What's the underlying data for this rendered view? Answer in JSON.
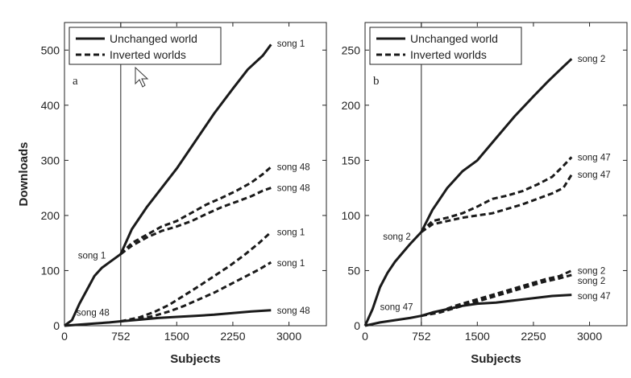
{
  "chart_data": [
    {
      "type": "line",
      "panel_label": "a",
      "xlabel": "Subjects",
      "ylabel": "Downloads",
      "xlim": [
        0,
        3500
      ],
      "ylim": [
        0,
        550
      ],
      "xticks": [
        0,
        752,
        1500,
        2250,
        3000
      ],
      "yticks": [
        0,
        100,
        200,
        300,
        400,
        500
      ],
      "xtick_labels": [
        "0",
        "752",
        "1500",
        "2250",
        "3000"
      ],
      "ytick_labels": [
        "0",
        "100",
        "200",
        "300",
        "400",
        "500"
      ],
      "reference_line_x": 752,
      "legend": {
        "position": "top-left",
        "entries": [
          {
            "label": "Unchanged world",
            "style": "solid"
          },
          {
            "label": "Inverted worlds",
            "style": "dashed"
          }
        ]
      },
      "series": [
        {
          "name": "Unchanged world",
          "label": "song 1",
          "style": "solid",
          "x": [
            0,
            100,
            200,
            300,
            400,
            500,
            600,
            752,
            900,
            1100,
            1300,
            1500,
            1750,
            2000,
            2250,
            2450,
            2650,
            2760
          ],
          "y": [
            0,
            10,
            40,
            65,
            90,
            105,
            115,
            130,
            175,
            215,
            250,
            285,
            335,
            385,
            430,
            465,
            490,
            510
          ]
        },
        {
          "name": "Unchanged world",
          "label": "song 48",
          "style": "solid",
          "x": [
            0,
            200,
            400,
            600,
            752,
            1000,
            1250,
            1500,
            1750,
            2000,
            2250,
            2500,
            2760
          ],
          "y": [
            0,
            2,
            4,
            6,
            8,
            11,
            14,
            16,
            18,
            20,
            23,
            26,
            28
          ]
        },
        {
          "name": "Inverted worlds",
          "label": "song 48",
          "style": "dashed",
          "x": [
            752,
            900,
            1100,
            1300,
            1500,
            1700,
            1900,
            2100,
            2300,
            2500,
            2650,
            2760
          ],
          "y": [
            130,
            150,
            165,
            180,
            190,
            205,
            220,
            232,
            245,
            260,
            275,
            288
          ]
        },
        {
          "name": "Inverted worlds",
          "label": "song 48",
          "style": "dashed",
          "x": [
            752,
            900,
            1100,
            1300,
            1500,
            1700,
            1900,
            2100,
            2300,
            2500,
            2650,
            2760
          ],
          "y": [
            130,
            145,
            160,
            172,
            180,
            190,
            203,
            215,
            225,
            235,
            245,
            250
          ]
        },
        {
          "name": "Inverted worlds",
          "label": "song 1",
          "style": "dashed",
          "x": [
            752,
            1000,
            1200,
            1400,
            1600,
            1800,
            2000,
            2200,
            2400,
            2600,
            2760
          ],
          "y": [
            8,
            15,
            25,
            38,
            55,
            72,
            90,
            108,
            128,
            150,
            170
          ]
        },
        {
          "name": "Inverted worlds",
          "label": "song 1",
          "style": "dashed",
          "x": [
            752,
            1000,
            1200,
            1400,
            1600,
            1800,
            2000,
            2200,
            2400,
            2600,
            2760
          ],
          "y": [
            8,
            12,
            18,
            26,
            36,
            48,
            60,
            74,
            88,
            102,
            115
          ]
        }
      ],
      "annotations": [
        {
          "text": "song 1",
          "x": 2840,
          "y": 512
        },
        {
          "text": "song 48",
          "x": 2840,
          "y": 288
        },
        {
          "text": "song 48",
          "x": 2840,
          "y": 250
        },
        {
          "text": "song 1",
          "x": 2840,
          "y": 170
        },
        {
          "text": "song 1",
          "x": 2840,
          "y": 114
        },
        {
          "text": "song 48",
          "x": 2840,
          "y": 28
        },
        {
          "text": "song 1",
          "x": 180,
          "y": 128
        },
        {
          "text": "song 48",
          "x": 160,
          "y": 24
        }
      ]
    },
    {
      "type": "line",
      "panel_label": "b",
      "xlabel": "Subjects",
      "ylabel": "",
      "xlim": [
        0,
        3500
      ],
      "ylim": [
        0,
        275
      ],
      "xticks": [
        0,
        752,
        1500,
        2250,
        3000
      ],
      "yticks": [
        0,
        50,
        100,
        150,
        200,
        250
      ],
      "xtick_labels": [
        "0",
        "752",
        "1500",
        "2250",
        "3000"
      ],
      "ytick_labels": [
        "0",
        "50",
        "100",
        "150",
        "200",
        "250"
      ],
      "reference_line_x": 752,
      "legend": {
        "position": "top-left",
        "entries": [
          {
            "label": "Unchanged world",
            "style": "solid"
          },
          {
            "label": "Inverted worlds",
            "style": "dashed"
          }
        ]
      },
      "series": [
        {
          "name": "Unchanged world",
          "label": "song 2",
          "style": "solid",
          "x": [
            0,
            100,
            200,
            300,
            400,
            500,
            600,
            752,
            900,
            1100,
            1300,
            1500,
            1750,
            2000,
            2250,
            2450,
            2650,
            2760
          ],
          "y": [
            0,
            15,
            35,
            48,
            58,
            66,
            74,
            85,
            105,
            125,
            140,
            150,
            170,
            190,
            208,
            222,
            235,
            242
          ]
        },
        {
          "name": "Unchanged world",
          "label": "song 47",
          "style": "solid",
          "x": [
            0,
            200,
            400,
            600,
            752,
            900,
            1100,
            1300,
            1500,
            1750,
            2000,
            2250,
            2500,
            2760
          ],
          "y": [
            0,
            3,
            5,
            7,
            9,
            12,
            15,
            18,
            20,
            21,
            23,
            25,
            27,
            28
          ]
        },
        {
          "name": "Inverted worlds",
          "label": "song 47",
          "style": "dashed",
          "x": [
            752,
            900,
            1100,
            1300,
            1500,
            1700,
            1900,
            2100,
            2300,
            2500,
            2650,
            2760
          ],
          "y": [
            85,
            95,
            98,
            102,
            108,
            115,
            118,
            122,
            128,
            135,
            145,
            153
          ]
        },
        {
          "name": "Inverted worlds",
          "label": "song 47",
          "style": "dashed",
          "x": [
            752,
            900,
            1100,
            1300,
            1500,
            1700,
            1900,
            2100,
            2300,
            2500,
            2650,
            2760
          ],
          "y": [
            85,
            92,
            95,
            98,
            100,
            102,
            106,
            110,
            115,
            120,
            125,
            137
          ]
        },
        {
          "name": "Inverted worlds",
          "label": "song 2",
          "style": "dashed",
          "x": [
            752,
            1000,
            1200,
            1400,
            1600,
            1800,
            2000,
            2200,
            2400,
            2600,
            2760
          ],
          "y": [
            9,
            13,
            18,
            22,
            26,
            30,
            34,
            38,
            42,
            45,
            50
          ]
        },
        {
          "name": "Inverted worlds",
          "label": "song 2",
          "style": "dashed",
          "x": [
            752,
            1000,
            1200,
            1400,
            1600,
            1800,
            2000,
            2200,
            2400,
            2600,
            2760
          ],
          "y": [
            9,
            12,
            16,
            20,
            24,
            28,
            32,
            36,
            40,
            43,
            46
          ]
        }
      ],
      "annotations": [
        {
          "text": "song 2",
          "x": 2840,
          "y": 242
        },
        {
          "text": "song 47",
          "x": 2840,
          "y": 153
        },
        {
          "text": "song 47",
          "x": 2840,
          "y": 137
        },
        {
          "text": "song 2",
          "x": 2840,
          "y": 50
        },
        {
          "text": "song 2",
          "x": 2840,
          "y": 41
        },
        {
          "text": "song 47",
          "x": 2840,
          "y": 27
        },
        {
          "text": "song 2",
          "x": 240,
          "y": 81
        },
        {
          "text": "song 47",
          "x": 200,
          "y": 17
        }
      ]
    }
  ]
}
